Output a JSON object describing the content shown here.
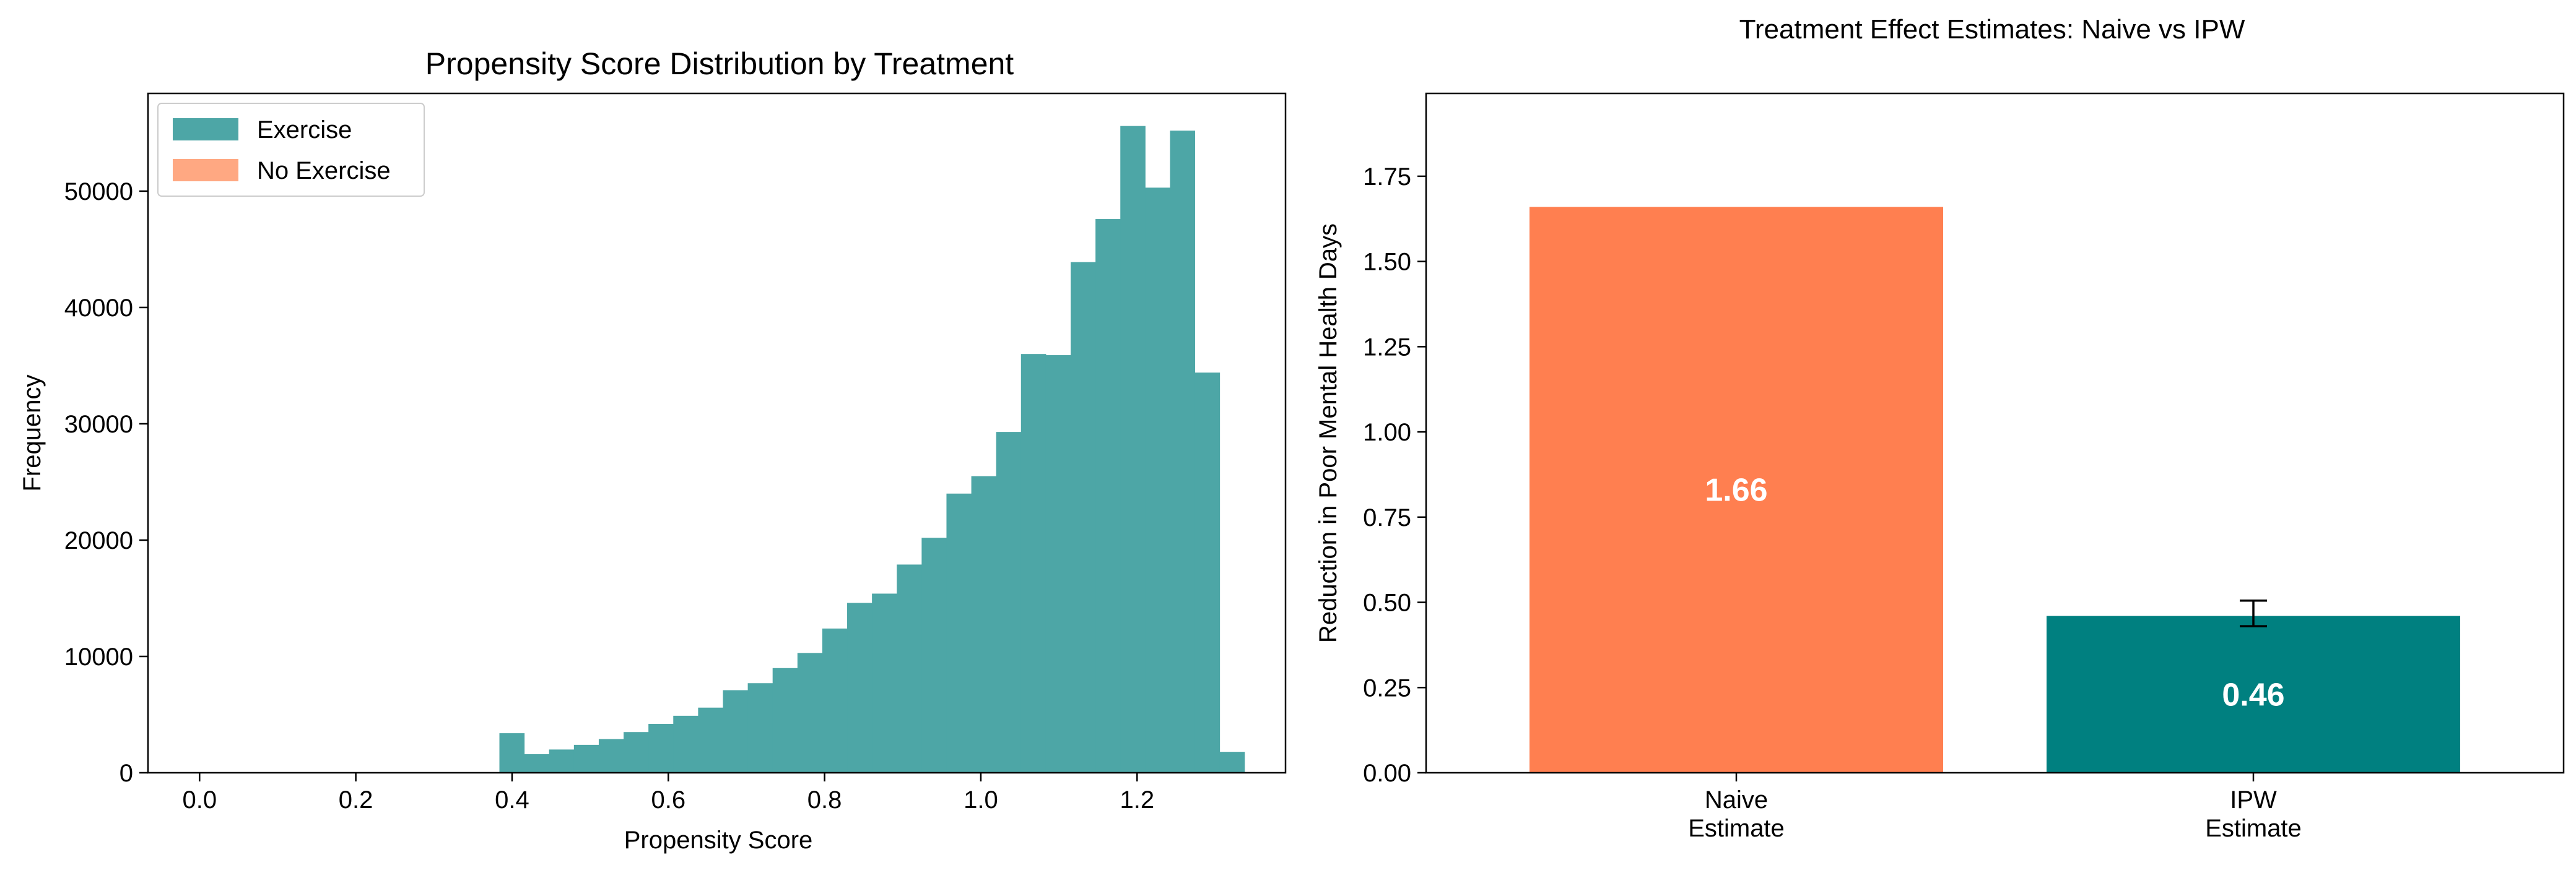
{
  "chart_data": [
    {
      "type": "histogram",
      "title": "Propensity Score Distribution by Treatment",
      "xlabel": "Propensity Score",
      "ylabel": "Frequency",
      "xlim": [
        -0.066,
        1.39
      ],
      "ylim": [
        0,
        58400
      ],
      "xticks": [
        "0.0",
        "0.2",
        "0.4",
        "0.6",
        "0.8",
        "1.0",
        "1.2"
      ],
      "xtick_values": [
        0,
        0.2,
        0.4,
        0.6,
        0.8,
        1.0,
        1.2
      ],
      "yticks": [
        "0",
        "10000",
        "20000",
        "30000",
        "40000",
        "50000"
      ],
      "ytick_values": [
        0,
        10000,
        20000,
        30000,
        40000,
        50000
      ],
      "legend": {
        "position": "upper-left",
        "entries": [
          {
            "label": "Exercise",
            "color": "#4da6a6"
          },
          {
            "label": "No Exercise",
            "color": "#ffa882"
          }
        ]
      },
      "series": [
        {
          "name": "Exercise",
          "color": "#4da6a6",
          "bin_start": 0.3838,
          "bin_width": 0.03179,
          "counts": [
            3400,
            1600,
            2000,
            2400,
            2900,
            3500,
            4200,
            4900,
            5600,
            7100,
            7700,
            9000,
            10300,
            12400,
            14600,
            15400,
            17900,
            20200,
            24000,
            25500,
            29300,
            36000,
            35900,
            43900,
            47600,
            55600,
            50300,
            55200,
            34400,
            1800
          ]
        },
        {
          "name": "No Exercise",
          "color": "#ffa882",
          "counts": []
        }
      ]
    },
    {
      "type": "bar",
      "title": "Treatment Effect Estimates: Naive vs IPW",
      "xlabel": "",
      "ylabel": "Reduction in Poor Mental Health Days",
      "ylim": [
        0,
        1.993
      ],
      "yticks": [
        "0.00",
        "0.25",
        "0.50",
        "0.75",
        "1.00",
        "1.25",
        "1.50",
        "1.75"
      ],
      "ytick_values": [
        0,
        0.25,
        0.5,
        0.75,
        1.0,
        1.25,
        1.5,
        1.75
      ],
      "categories": [
        [
          "Naive",
          "Estimate"
        ],
        [
          "IPW",
          "Estimate"
        ]
      ],
      "values": [
        1.66,
        0.46
      ],
      "value_labels": [
        "1.66",
        "0.46"
      ],
      "colors": [
        "#ff7f50",
        "#008080"
      ],
      "error": [
        null,
        {
          "low": 0.43,
          "high": 0.505
        }
      ]
    }
  ]
}
